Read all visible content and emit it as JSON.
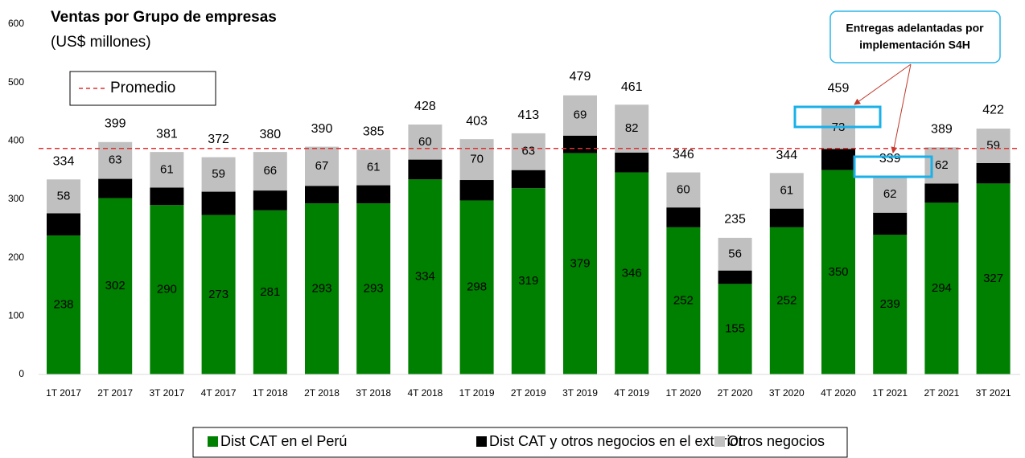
{
  "chart_data": {
    "type": "bar",
    "stacked": true,
    "title": "Ventas por Grupo de empresas",
    "subtitle": "(US$ millones)",
    "categories": [
      "1T 2017",
      "2T 2017",
      "3T 2017",
      "4T 2017",
      "1T 2018",
      "2T 2018",
      "3T 2018",
      "4T 2018",
      "1T 2019",
      "2T 2019",
      "3T 2019",
      "4T 2019",
      "1T 2020",
      "2T 2020",
      "3T 2020",
      "4T 2020",
      "1T 2021",
      "2T 2021",
      "3T 2021"
    ],
    "series": [
      {
        "name": "Dist CAT en el Perú",
        "color": "#008000",
        "label_color": "#000000",
        "values": [
          238,
          302,
          290,
          273,
          281,
          293,
          293,
          334,
          298,
          319,
          379,
          346,
          252,
          155,
          252,
          350,
          239,
          294,
          327
        ]
      },
      {
        "name": "Dist CAT y otros negocios en el exterior",
        "color": "#000000",
        "label_color": "#ffffff",
        "values": [
          38,
          33,
          30,
          40,
          34,
          30,
          31,
          34,
          35,
          31,
          30,
          34,
          34,
          23,
          32,
          36,
          38,
          33,
          35
        ]
      },
      {
        "name": "Otros negocios",
        "color": "#c0c0c0",
        "label_color": "#000000",
        "values": [
          58,
          63,
          61,
          59,
          66,
          67,
          61,
          60,
          70,
          63,
          69,
          82,
          60,
          56,
          61,
          73,
          62,
          62,
          59
        ]
      }
    ],
    "totals": [
      334,
      399,
      381,
      372,
      380,
      390,
      385,
      428,
      403,
      413,
      479,
      461,
      346,
      235,
      344,
      459,
      339,
      389,
      422
    ],
    "average": {
      "name": "Promedio",
      "value": 387,
      "color": "#e03030"
    },
    "annotation": [
      "Entregas adelantadas por",
      "implementación S4H"
    ],
    "ylim": [
      0,
      600
    ],
    "yticks": [
      0,
      100,
      200,
      300,
      400,
      500,
      600
    ]
  }
}
